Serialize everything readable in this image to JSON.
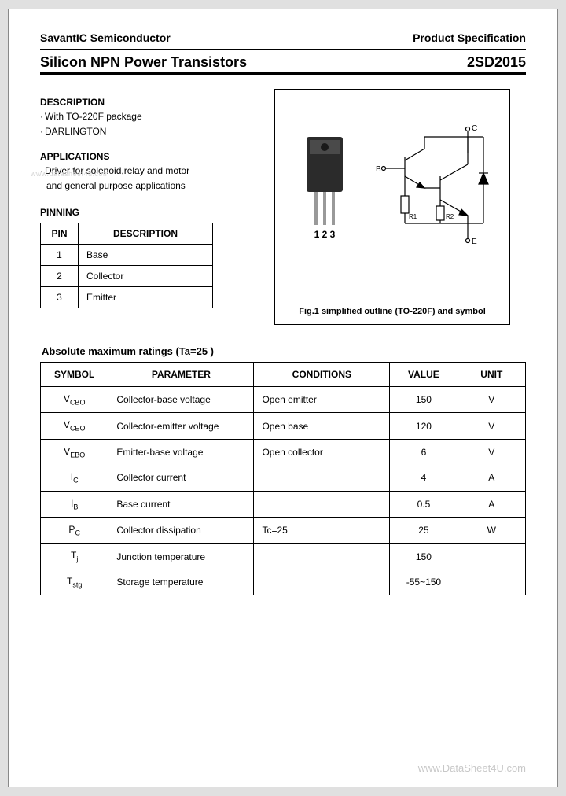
{
  "header": {
    "company": "SavantIC Semiconductor",
    "doc_type": "Product Specification",
    "title_left": "Silicon NPN Power Transistors",
    "title_right": "2SD2015"
  },
  "description": {
    "heading": "DESCRIPTION",
    "lines": [
      "With TO-220F package",
      "DARLINGTON"
    ]
  },
  "applications": {
    "heading": "APPLICATIONS",
    "lines": [
      "Driver for solenoid,relay and motor",
      "and general purpose applications"
    ]
  },
  "pinning": {
    "heading": "PINNING",
    "columns": [
      "PIN",
      "DESCRIPTION"
    ],
    "rows": [
      [
        "1",
        "Base"
      ],
      [
        "2",
        "Collector"
      ],
      [
        "3",
        "Emitter"
      ]
    ]
  },
  "figure": {
    "pin_labels": "1 2 3",
    "term_b": "B",
    "term_c": "C",
    "term_e": "E",
    "res_r1": "R1",
    "res_r2": "R2",
    "caption": "Fig.1 simplified outline (TO-220F) and symbol"
  },
  "ratings": {
    "heading": "Absolute maximum ratings (Ta=25 )",
    "columns": [
      "SYMBOL",
      "PARAMETER",
      "CONDITIONS",
      "VALUE",
      "UNIT"
    ],
    "rows": [
      {
        "symbol": "V_CBO",
        "parameter": "Collector-base voltage",
        "conditions": "Open emitter",
        "value": "150",
        "unit": "V",
        "group": "a"
      },
      {
        "symbol": "V_CEO",
        "parameter": "Collector-emitter voltage",
        "conditions": "Open base",
        "value": "120",
        "unit": "V",
        "group": "b"
      },
      {
        "symbol": "V_EBO",
        "parameter": "Emitter-base voltage",
        "conditions": "Open collector",
        "value": "6",
        "unit": "V",
        "group": "c"
      },
      {
        "symbol": "I_C",
        "parameter": "Collector current",
        "conditions": "",
        "value": "4",
        "unit": "A",
        "group": "c"
      },
      {
        "symbol": "I_B",
        "parameter": "Base current",
        "conditions": "",
        "value": "0.5",
        "unit": "A",
        "group": "d"
      },
      {
        "symbol": "P_C",
        "parameter": "Collector dissipation",
        "conditions": "Tc=25",
        "value": "25",
        "unit": "W",
        "group": "e"
      },
      {
        "symbol": "T_j",
        "parameter": "Junction temperature",
        "conditions": "",
        "value": "150",
        "unit": "",
        "group": "f"
      },
      {
        "symbol": "T_stg",
        "parameter": "Storage temperature",
        "conditions": "",
        "value": "-55~150",
        "unit": "",
        "group": "f"
      }
    ],
    "col_widths": [
      "14%",
      "30%",
      "28%",
      "14%",
      "14%"
    ]
  },
  "watermarks": {
    "small": "www.datasheet4u.com",
    "footer": "www.DataSheet4U.com"
  },
  "colors": {
    "page_bg": "#ffffff",
    "outer_bg": "#e0e0e0",
    "text": "#000000",
    "watermark": "#c8c8c8",
    "component_body": "#2b2b2b"
  }
}
